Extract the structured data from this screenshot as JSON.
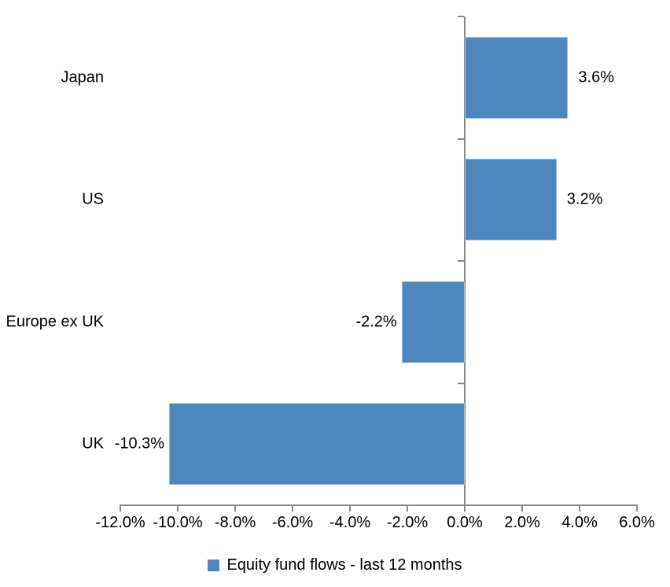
{
  "chart_data": {
    "type": "bar",
    "orientation": "horizontal",
    "categories": [
      "Japan",
      "US",
      "Europe ex UK",
      "UK"
    ],
    "values": [
      3.6,
      3.2,
      -2.2,
      -10.3
    ],
    "value_labels": [
      "3.6%",
      "3.2%",
      "-2.2%",
      "-10.3%"
    ],
    "xlim": [
      -12,
      6
    ],
    "x_ticks": [
      -12,
      -10,
      -8,
      -6,
      -4,
      -2,
      0,
      2,
      4,
      6
    ],
    "x_tick_labels": [
      "-12.0%",
      "-10.0%",
      "-8.0%",
      "-6.0%",
      "-4.0%",
      "-2.0%",
      "0.0%",
      "2.0%",
      "4.0%",
      "6.0%"
    ],
    "grid": false,
    "legend_position": "bottom",
    "legend": [
      {
        "label": "Equity fund flows - last 12 months",
        "color": "#4E87BE"
      }
    ],
    "colors": {
      "bar_fill": "#4E87BE",
      "bar_border": "#9EC2DE",
      "axis": "#898989",
      "text": "#000000",
      "background": "#ffffff"
    }
  }
}
